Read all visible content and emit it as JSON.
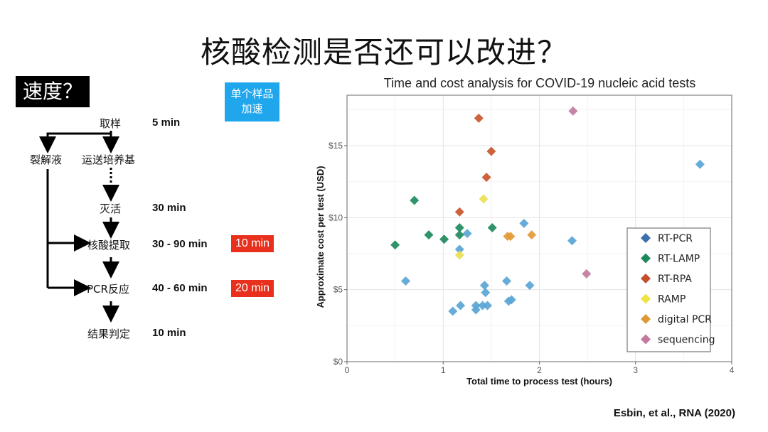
{
  "slide": {
    "title": "核酸检测是否还可以改进？",
    "speed_label": "速度？",
    "accel_label_line1": "单个样品",
    "accel_label_line2": "加速",
    "citation": "Esbin, et al., RNA (2020)"
  },
  "flow": {
    "nodes": {
      "sampling": "取样",
      "lysis": "裂解液",
      "transport": "运送培养基",
      "inactivation": "灭活",
      "extraction": "核酸提取",
      "pcr": "PCR反应",
      "result": "结果判定"
    },
    "times": {
      "sampling": "5 min",
      "inactivation": "30 min",
      "extraction": "30 - 90 min",
      "pcr": "40 - 60 min",
      "result": "10 min"
    },
    "improved": {
      "extraction": "10 min",
      "pcr": "20 min"
    }
  },
  "chart_data": {
    "type": "scatter",
    "title": "Time and cost analysis for COVID-19 nucleic acid tests",
    "xlabel": "Total time to process test (hours)",
    "ylabel": "Approximate cost per test (USD)",
    "xlim": [
      0,
      4
    ],
    "ylim": [
      0,
      18.5
    ],
    "xticks": [
      "0",
      "1",
      "2",
      "3",
      "4"
    ],
    "yticks": [
      "$0",
      "$5",
      "$10",
      "$15"
    ],
    "grid": true,
    "legend_position": "right-inside",
    "marker": "diamond",
    "series": [
      {
        "name": "RT-PCR",
        "color": "#3b6fb0",
        "point_color": "#5aa5d6",
        "points": [
          [
            3.67,
            13.7
          ],
          [
            2.34,
            8.4
          ],
          [
            1.84,
            9.6
          ],
          [
            1.25,
            8.9
          ],
          [
            1.17,
            7.8
          ],
          [
            0.61,
            5.6
          ],
          [
            1.66,
            5.6
          ],
          [
            1.9,
            5.3
          ],
          [
            1.43,
            5.3
          ],
          [
            1.44,
            4.8
          ],
          [
            1.68,
            4.2
          ],
          [
            1.71,
            4.3
          ],
          [
            1.18,
            3.9
          ],
          [
            1.1,
            3.5
          ],
          [
            1.34,
            3.9
          ],
          [
            1.34,
            3.6
          ],
          [
            1.41,
            3.9
          ],
          [
            1.46,
            3.9
          ]
        ]
      },
      {
        "name": "RT-LAMP",
        "color": "#1e8a5c",
        "point_color": "#1e8a5c",
        "points": [
          [
            0.7,
            11.2
          ],
          [
            0.5,
            8.1
          ],
          [
            0.85,
            8.8
          ],
          [
            1.01,
            8.5
          ],
          [
            1.17,
            9.3
          ],
          [
            1.17,
            8.8
          ],
          [
            1.51,
            9.3
          ]
        ]
      },
      {
        "name": "RT-RPA",
        "color": "#c54e2b",
        "point_color": "#c9552c",
        "points": [
          [
            1.37,
            16.9
          ],
          [
            1.5,
            14.6
          ],
          [
            1.45,
            12.8
          ],
          [
            1.17,
            10.4
          ]
        ]
      },
      {
        "name": "RAMP",
        "color": "#f0e442",
        "point_color": "#ece050",
        "points": [
          [
            1.42,
            11.3
          ],
          [
            1.17,
            7.4
          ]
        ]
      },
      {
        "name": "digital PCR",
        "color": "#e09a35",
        "point_color": "#e39b3a",
        "points": [
          [
            1.67,
            8.7
          ],
          [
            1.7,
            8.7
          ],
          [
            1.92,
            8.8
          ]
        ]
      },
      {
        "name": "sequencing",
        "color": "#c27a9e",
        "point_color": "#c27a9e",
        "points": [
          [
            2.35,
            17.4
          ],
          [
            2.49,
            6.1
          ]
        ]
      }
    ]
  }
}
